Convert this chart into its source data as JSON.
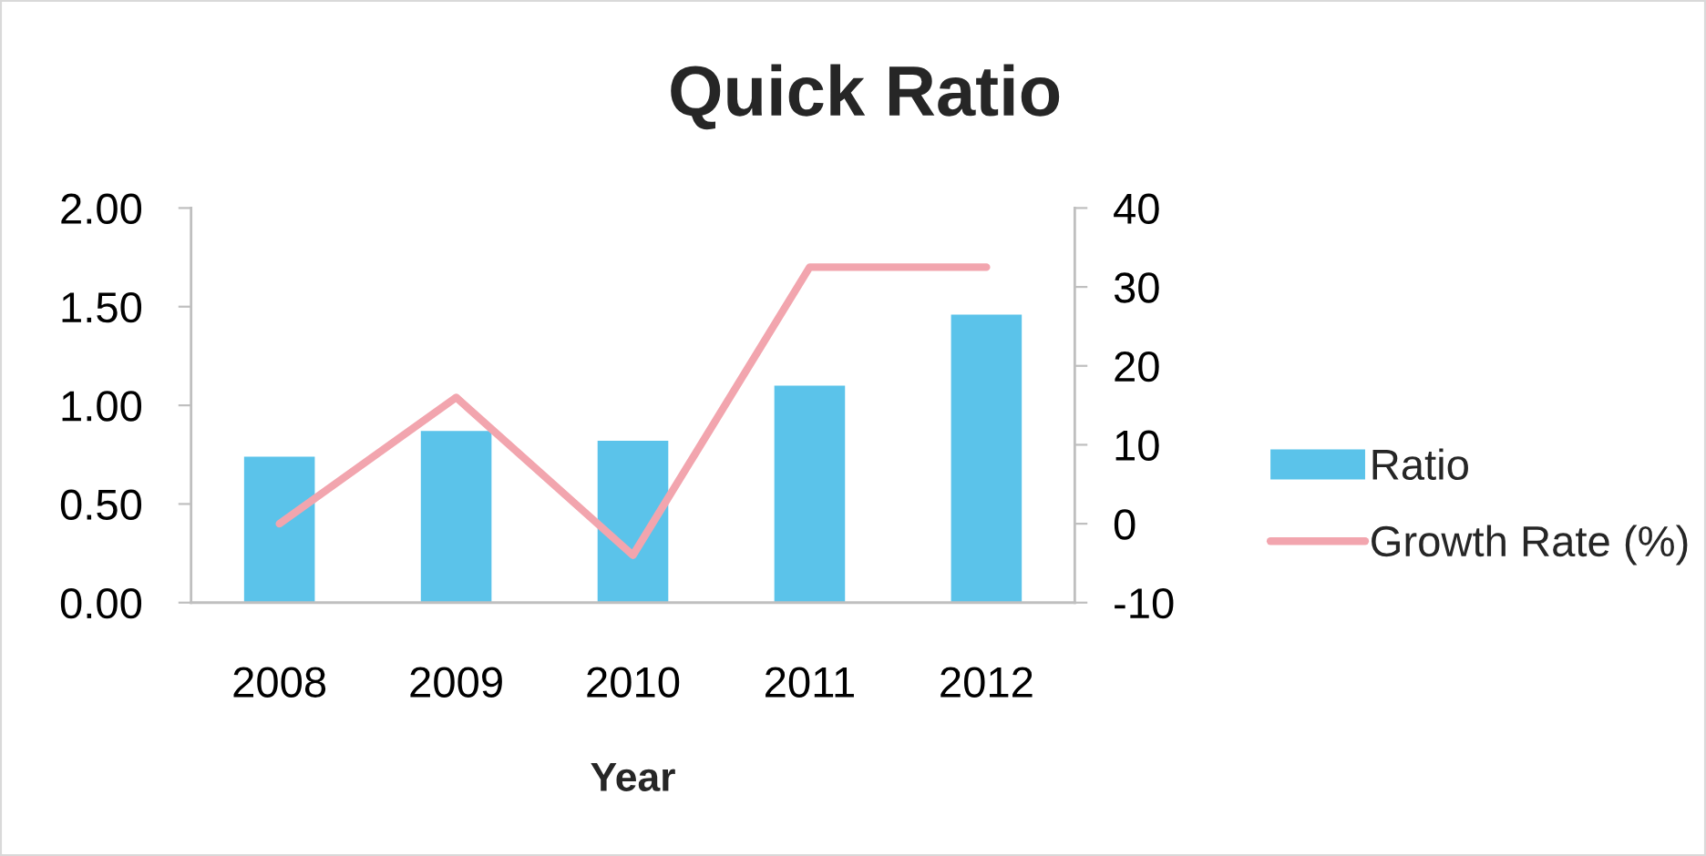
{
  "chart_data": {
    "type": "bar",
    "title": "Quick Ratio",
    "xlabel": "Year",
    "categories": [
      "2008",
      "2009",
      "2010",
      "2011",
      "2012"
    ],
    "series": [
      {
        "name": "Ratio",
        "color": "#5bc3ea",
        "values": [
          0.74,
          0.87,
          0.82,
          1.1,
          1.46
        ]
      },
      {
        "name": "Growth Rate (%)",
        "type": "line",
        "axis": "y2",
        "color": "#f2a5ae",
        "values": [
          0,
          16,
          -4,
          32.5,
          32.5
        ]
      }
    ],
    "ylim": [
      0,
      2
    ],
    "yticks": [
      {
        "value": 0,
        "label": "0.00"
      },
      {
        "value": 0.5,
        "label": "0.50"
      },
      {
        "value": 1,
        "label": "1.00"
      },
      {
        "value": 1.5,
        "label": "1.50"
      },
      {
        "value": 2,
        "label": "2.00"
      }
    ],
    "y2lim": [
      -10,
      40
    ],
    "y2ticks": [
      -10,
      0,
      10,
      20,
      30,
      40
    ],
    "legend": "right"
  }
}
